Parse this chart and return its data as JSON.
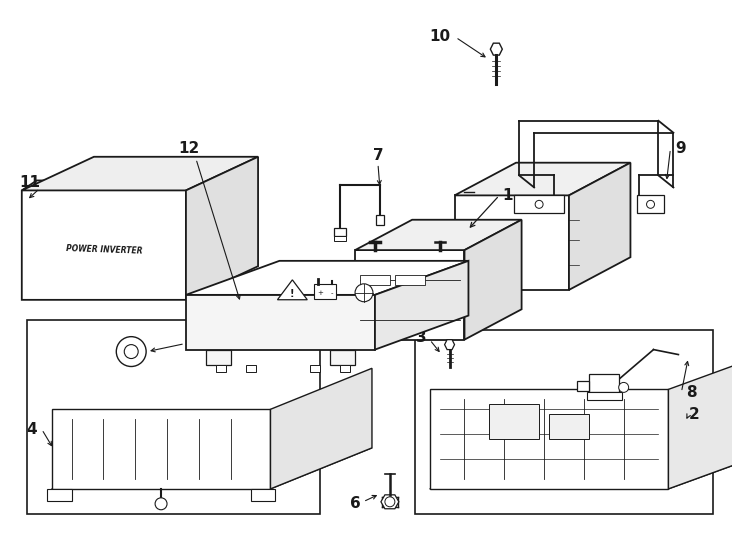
{
  "background_color": "#ffffff",
  "line_color": "#1a1a1a",
  "fig_width": 7.34,
  "fig_height": 5.4,
  "dpi": 100,
  "border_color": "#333333",
  "label_fontsize": 11,
  "arrow_lw": 0.8
}
